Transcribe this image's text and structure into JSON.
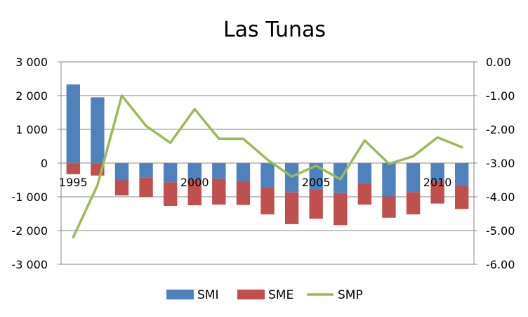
{
  "chart_data": {
    "type": "bar",
    "title": "Las Tunas",
    "categories": [
      "1995",
      "1996",
      "1997",
      "1998",
      "1999",
      "2000",
      "2001",
      "2002",
      "2003",
      "2004",
      "2005",
      "2006",
      "2007",
      "2008",
      "2009",
      "2010",
      "2011"
    ],
    "x_tick_labels": [
      "1995",
      "2000",
      "2005",
      "2010"
    ],
    "stacked": true,
    "series": [
      {
        "name": "SMI",
        "type": "bar",
        "axis": "left",
        "color": "#4F81BD",
        "values": [
          2330,
          1950,
          -510,
          -430,
          -570,
          -490,
          -470,
          -540,
          -730,
          -870,
          -780,
          -890,
          -590,
          -990,
          -860,
          -540,
          -660
        ]
      },
      {
        "name": "SME",
        "type": "bar",
        "axis": "left",
        "color": "#C0504D",
        "values": [
          -330,
          -370,
          -450,
          -570,
          -700,
          -760,
          -760,
          -700,
          -790,
          -940,
          -870,
          -950,
          -640,
          -630,
          -660,
          -660,
          -700
        ]
      },
      {
        "name": "SMP",
        "type": "line",
        "axis": "right",
        "color": "#9BBB59",
        "values": [
          -5.2,
          -3.65,
          -1.0,
          -1.9,
          -2.4,
          -1.4,
          -2.28,
          -2.28,
          -2.9,
          -3.4,
          -3.08,
          -3.48,
          -2.33,
          -3.02,
          -2.8,
          -2.24,
          -2.53
        ]
      }
    ],
    "y_left": {
      "ylim": [
        -3000,
        3000
      ],
      "ticks": [
        3000,
        2000,
        1000,
        0,
        -1000,
        -2000,
        -3000
      ],
      "tick_labels": [
        "3 000",
        "2 000",
        "1 000",
        "0",
        "-1 000",
        "-2 000",
        "-3 000"
      ]
    },
    "y_right": {
      "ylim": [
        -6,
        0
      ],
      "ticks": [
        0,
        -1,
        -2,
        -3,
        -4,
        -5,
        -6
      ],
      "tick_labels": [
        "0.00",
        "-1.00",
        "-2.00",
        "-3.00",
        "-4.00",
        "-5.00",
        "-6.00"
      ]
    },
    "xlabel": "",
    "ylabel": "",
    "grid": true,
    "legend_position": "bottom"
  }
}
